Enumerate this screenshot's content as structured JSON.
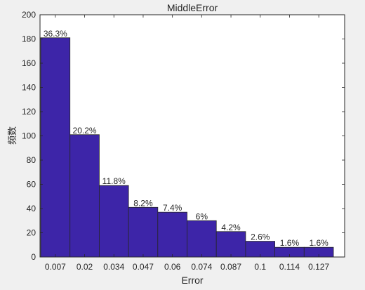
{
  "chart_data": {
    "type": "bar",
    "title": "MiddleError",
    "xlabel": "Error",
    "ylabel": "频数",
    "categories": [
      "0.007",
      "0.02",
      "0.034",
      "0.047",
      "0.06",
      "0.074",
      "0.087",
      "0.1",
      "0.114",
      "0.127"
    ],
    "values": [
      181,
      101,
      59,
      41,
      37,
      30,
      21,
      13,
      8,
      8
    ],
    "data_labels": [
      "36.3%",
      "20.2%",
      "11.8%",
      "8.2%",
      "7.4%",
      "6%",
      "4.2%",
      "2.6%",
      "1.6%",
      "1.6%"
    ],
    "ylim": [
      0,
      200
    ],
    "yticks": [
      "0",
      "20",
      "40",
      "60",
      "80",
      "100",
      "120",
      "140",
      "160",
      "180",
      "200"
    ],
    "grid": false,
    "bar_color": "#3d25a8",
    "background": "#f0f0f0"
  }
}
